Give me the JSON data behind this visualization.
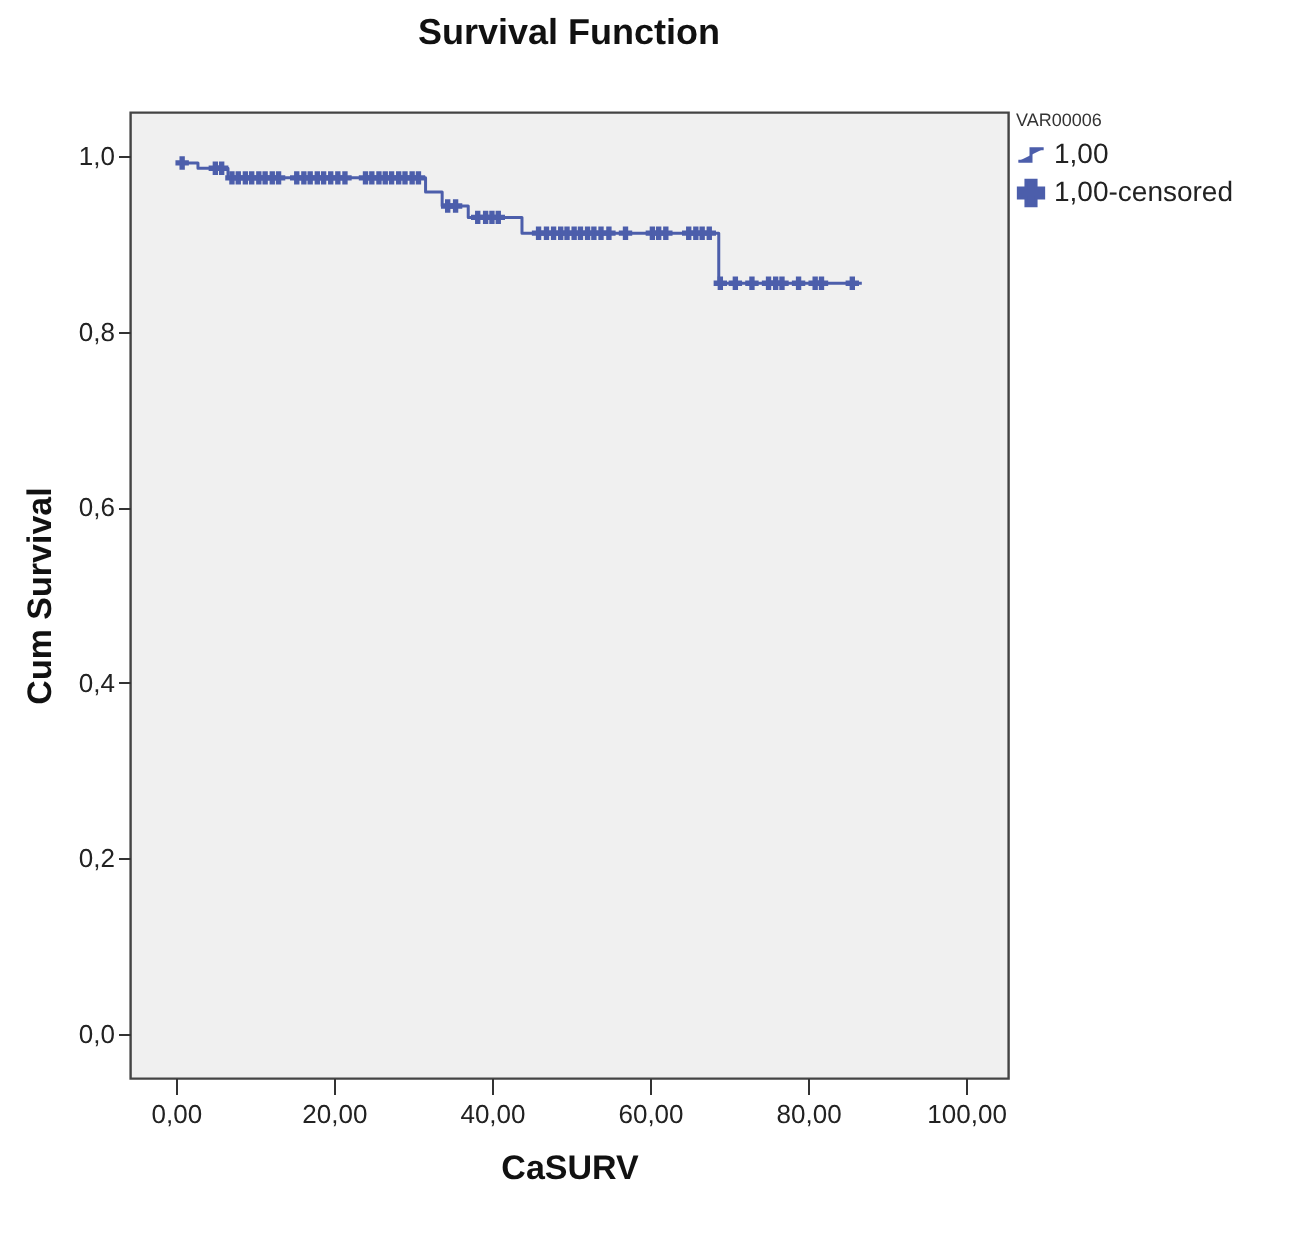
{
  "chart_data": {
    "type": "step",
    "title": "Survival Function",
    "xlabel": "CaSURV",
    "ylabel": "Cum Survival",
    "legend_title": "VAR00006",
    "legend": "top right",
    "xlim": [
      -5.8,
      105.3
    ],
    "ylim": [
      -0.05,
      1.05
    ],
    "xticks": [
      {
        "value": 0,
        "label": "0,00"
      },
      {
        "value": 20,
        "label": "20,00"
      },
      {
        "value": 40,
        "label": "40,00"
      },
      {
        "value": 60,
        "label": "60,00"
      },
      {
        "value": 80,
        "label": "80,00"
      },
      {
        "value": 100,
        "label": "100,00"
      }
    ],
    "yticks": [
      {
        "value": 0,
        "label": "0,0"
      },
      {
        "value": 0.2,
        "label": "0,2"
      },
      {
        "value": 0.4,
        "label": "0,4"
      },
      {
        "value": 0.6,
        "label": "0,6"
      },
      {
        "value": 0.8,
        "label": "0,8"
      },
      {
        "value": 1,
        "label": "1,0"
      }
    ],
    "series": [
      {
        "name": "1,00",
        "color": "#4c5eab",
        "x": [
          0.8,
          2.8,
          6.6,
          31.6,
          33.7,
          37,
          43.8,
          68.7,
          86.8
        ],
        "values": [
          0.992,
          0.986,
          0.975,
          0.959,
          0.943,
          0.93,
          0.912,
          0.855,
          0.855
        ]
      },
      {
        "name": "1,00-censored",
        "type": "scatter",
        "marker": "cross",
        "color": "#4c5eab",
        "x": [
          0.8,
          5.0,
          5.8,
          7.1,
          7.9,
          8.8,
          9.6,
          10.5,
          11.3,
          12.2,
          13.0,
          15.3,
          16.2,
          17.0,
          17.9,
          18.7,
          19.6,
          20.5,
          21.4,
          24.0,
          24.8,
          25.7,
          26.5,
          27.3,
          28.2,
          29.0,
          29.9,
          30.7,
          34.4,
          35.4,
          38.2,
          39.2,
          40.0,
          40.8,
          45.9,
          46.9,
          47.8,
          48.7,
          49.5,
          50.4,
          51.2,
          52.1,
          52.9,
          53.8,
          54.8,
          56.9,
          60.3,
          61.1,
          62.0,
          64.9,
          65.8,
          66.6,
          67.5,
          68.9,
          70.8,
          72.9,
          75.0,
          75.9,
          76.7,
          78.8,
          80.9,
          81.7,
          85.6
        ],
        "values": [
          0.992,
          0.986,
          0.986,
          0.975,
          0.975,
          0.975,
          0.975,
          0.975,
          0.975,
          0.975,
          0.975,
          0.975,
          0.975,
          0.975,
          0.975,
          0.975,
          0.975,
          0.975,
          0.975,
          0.975,
          0.975,
          0.975,
          0.975,
          0.975,
          0.975,
          0.975,
          0.975,
          0.975,
          0.943,
          0.943,
          0.93,
          0.93,
          0.93,
          0.93,
          0.912,
          0.912,
          0.912,
          0.912,
          0.912,
          0.912,
          0.912,
          0.912,
          0.912,
          0.912,
          0.912,
          0.912,
          0.912,
          0.912,
          0.912,
          0.912,
          0.912,
          0.912,
          0.912,
          0.855,
          0.855,
          0.855,
          0.855,
          0.855,
          0.855,
          0.855,
          0.855,
          0.855,
          0.855
        ]
      }
    ]
  }
}
